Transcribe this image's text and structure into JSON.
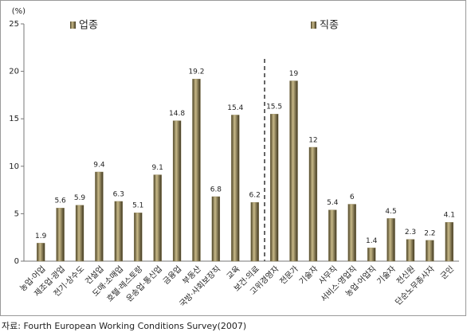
{
  "chart_data": {
    "type": "bar",
    "y_unit": "(%)",
    "categories": [
      "농업·어업",
      "제조업·광업",
      "전기·상수도",
      "건설업",
      "도매·소매업",
      "호텔·레스토랑",
      "운송업·통신업",
      "금융업",
      "부동산",
      "국방·사회보장직",
      "교육",
      "보건·의료",
      "고위경영자",
      "전문가",
      "기술자",
      "사무직",
      "서비스·영업직",
      "농업·어업직",
      "기술자",
      "전신원",
      "단순노무종사자",
      "군인"
    ],
    "series": [
      {
        "name": "업종",
        "color": "#8b7d4f",
        "values": [
          1.9,
          5.6,
          5.9,
          9.4,
          6.3,
          5.1,
          9.1,
          14.8,
          19.2,
          6.8,
          15.4,
          6.2,
          null,
          null,
          null,
          null,
          null,
          null,
          null,
          null,
          null,
          null
        ]
      },
      {
        "name": "직종",
        "color": "#8b7d4f",
        "values": [
          null,
          null,
          null,
          null,
          null,
          null,
          null,
          null,
          null,
          null,
          null,
          null,
          15.5,
          19,
          12,
          5.4,
          6,
          1.4,
          4.5,
          2.3,
          2.2,
          4.1
        ]
      }
    ],
    "ylim": [
      0,
      25
    ],
    "yticks": [
      0,
      5,
      10,
      15,
      20,
      25
    ],
    "grid": false,
    "source": "자료: Fourth European Working Conditions Survey(2007)"
  }
}
